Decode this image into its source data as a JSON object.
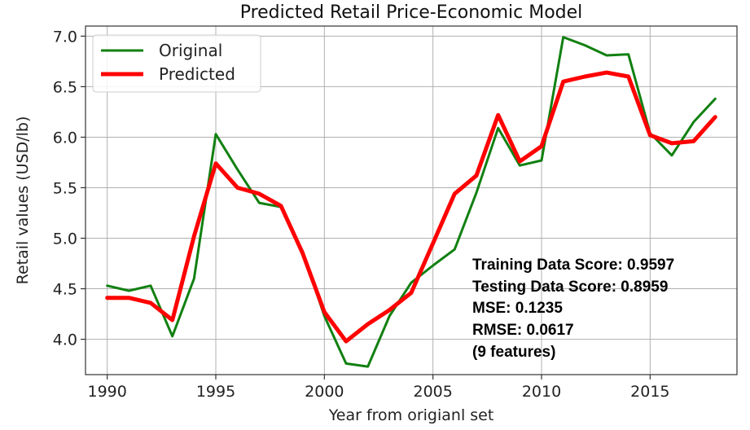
{
  "chart_data": {
    "type": "line",
    "title": "Predicted Retail Price-Economic Model",
    "xlabel": "Year from origianl set",
    "ylabel": "Retail values (USD/lb)",
    "xlim": [
      1989,
      2019
    ],
    "ylim": [
      3.65,
      7.1
    ],
    "xticks": [
      1990,
      1995,
      2000,
      2005,
      2010,
      2015
    ],
    "xtick_labels": [
      "1990",
      "1995",
      "2000",
      "2005",
      "2010",
      "2015"
    ],
    "yticks": [
      4.0,
      4.5,
      5.0,
      5.5,
      6.0,
      6.5,
      7.0
    ],
    "ytick_labels": [
      "4.0",
      "4.5",
      "5.0",
      "5.5",
      "6.0",
      "6.5",
      "7.0"
    ],
    "grid": true,
    "legend": "top-left",
    "x": [
      1990,
      1991,
      1992,
      1993,
      1994,
      1995,
      1996,
      1997,
      1998,
      1999,
      2000,
      2001,
      2002,
      2003,
      2004,
      2005,
      2006,
      2007,
      2008,
      2009,
      2010,
      2011,
      2012,
      2013,
      2014,
      2015,
      2016,
      2017,
      2018
    ],
    "series": [
      {
        "name": "Original",
        "color": "#118011",
        "values": [
          4.53,
          4.48,
          4.53,
          4.03,
          4.6,
          6.03,
          5.68,
          5.35,
          5.31,
          4.87,
          4.23,
          3.76,
          3.73,
          4.23,
          4.56,
          4.73,
          4.89,
          5.45,
          6.09,
          5.72,
          5.77,
          6.99,
          6.91,
          6.81,
          6.82,
          6.04,
          5.82,
          6.15,
          6.38
        ]
      },
      {
        "name": "Predicted",
        "color": "#ff0000",
        "values": [
          4.41,
          4.41,
          4.36,
          4.19,
          5.02,
          5.74,
          5.5,
          5.44,
          5.32,
          4.85,
          4.27,
          3.98,
          4.15,
          4.29,
          4.46,
          4.95,
          5.44,
          5.62,
          6.22,
          5.76,
          5.91,
          6.55,
          6.6,
          6.64,
          6.6,
          6.02,
          5.94,
          5.96,
          6.2
        ]
      }
    ],
    "annotations": [
      "Training Data Score: 0.9597",
      "Testing Data Score: 0.8959",
      "MSE: 0.1235",
      "RMSE: 0.0617",
      "(9 features)"
    ]
  }
}
